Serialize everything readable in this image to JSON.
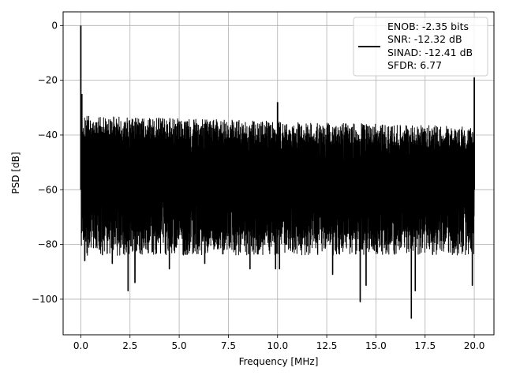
{
  "chart_data": {
    "type": "line",
    "xlabel": "Frequency [MHz]",
    "ylabel": "PSD [dB]",
    "xlim": [
      -0.9,
      21.0
    ],
    "ylim": [
      -113,
      5
    ],
    "xticks": [
      0.0,
      2.5,
      5.0,
      7.5,
      10.0,
      12.5,
      15.0,
      17.5,
      20.0
    ],
    "xtick_labels": [
      "0.0",
      "2.5",
      "5.0",
      "7.5",
      "10.0",
      "12.5",
      "15.0",
      "17.5",
      "20.0"
    ],
    "yticks": [
      0,
      -20,
      -40,
      -60,
      -80,
      -100
    ],
    "ytick_labels": [
      "0",
      "−20",
      "−40",
      "−60",
      "−80",
      "−100"
    ],
    "grid": true,
    "legend_position": "top-right",
    "series": [
      {
        "legend_lines": [
          "ENOB: -2.35 bits",
          "SNR: -12.32 dB",
          "SINAD: -12.41 dB",
          "SFDR: 6.77"
        ],
        "color": "#000000",
        "noise_floor": {
          "x_range": [
            0.02,
            20.0
          ],
          "upper_db_start": -33,
          "upper_db_end": -37,
          "lower_db": -82
        },
        "peaks": [
          {
            "x": 0.0,
            "y": 0
          },
          {
            "x": 0.05,
            "y": -25
          },
          {
            "x": 10.0,
            "y": -28
          },
          {
            "x": 20.0,
            "y": -19
          }
        ],
        "deep_dips": [
          {
            "x": 0.2,
            "y": -86
          },
          {
            "x": 1.6,
            "y": -87
          },
          {
            "x": 2.4,
            "y": -97
          },
          {
            "x": 2.75,
            "y": -94
          },
          {
            "x": 4.5,
            "y": -89
          },
          {
            "x": 6.3,
            "y": -87
          },
          {
            "x": 8.6,
            "y": -89
          },
          {
            "x": 9.9,
            "y": -89
          },
          {
            "x": 10.1,
            "y": -89
          },
          {
            "x": 12.8,
            "y": -91
          },
          {
            "x": 14.2,
            "y": -101
          },
          {
            "x": 14.5,
            "y": -95
          },
          {
            "x": 16.8,
            "y": -107
          },
          {
            "x": 17.0,
            "y": -97
          },
          {
            "x": 19.9,
            "y": -95
          }
        ]
      }
    ]
  }
}
